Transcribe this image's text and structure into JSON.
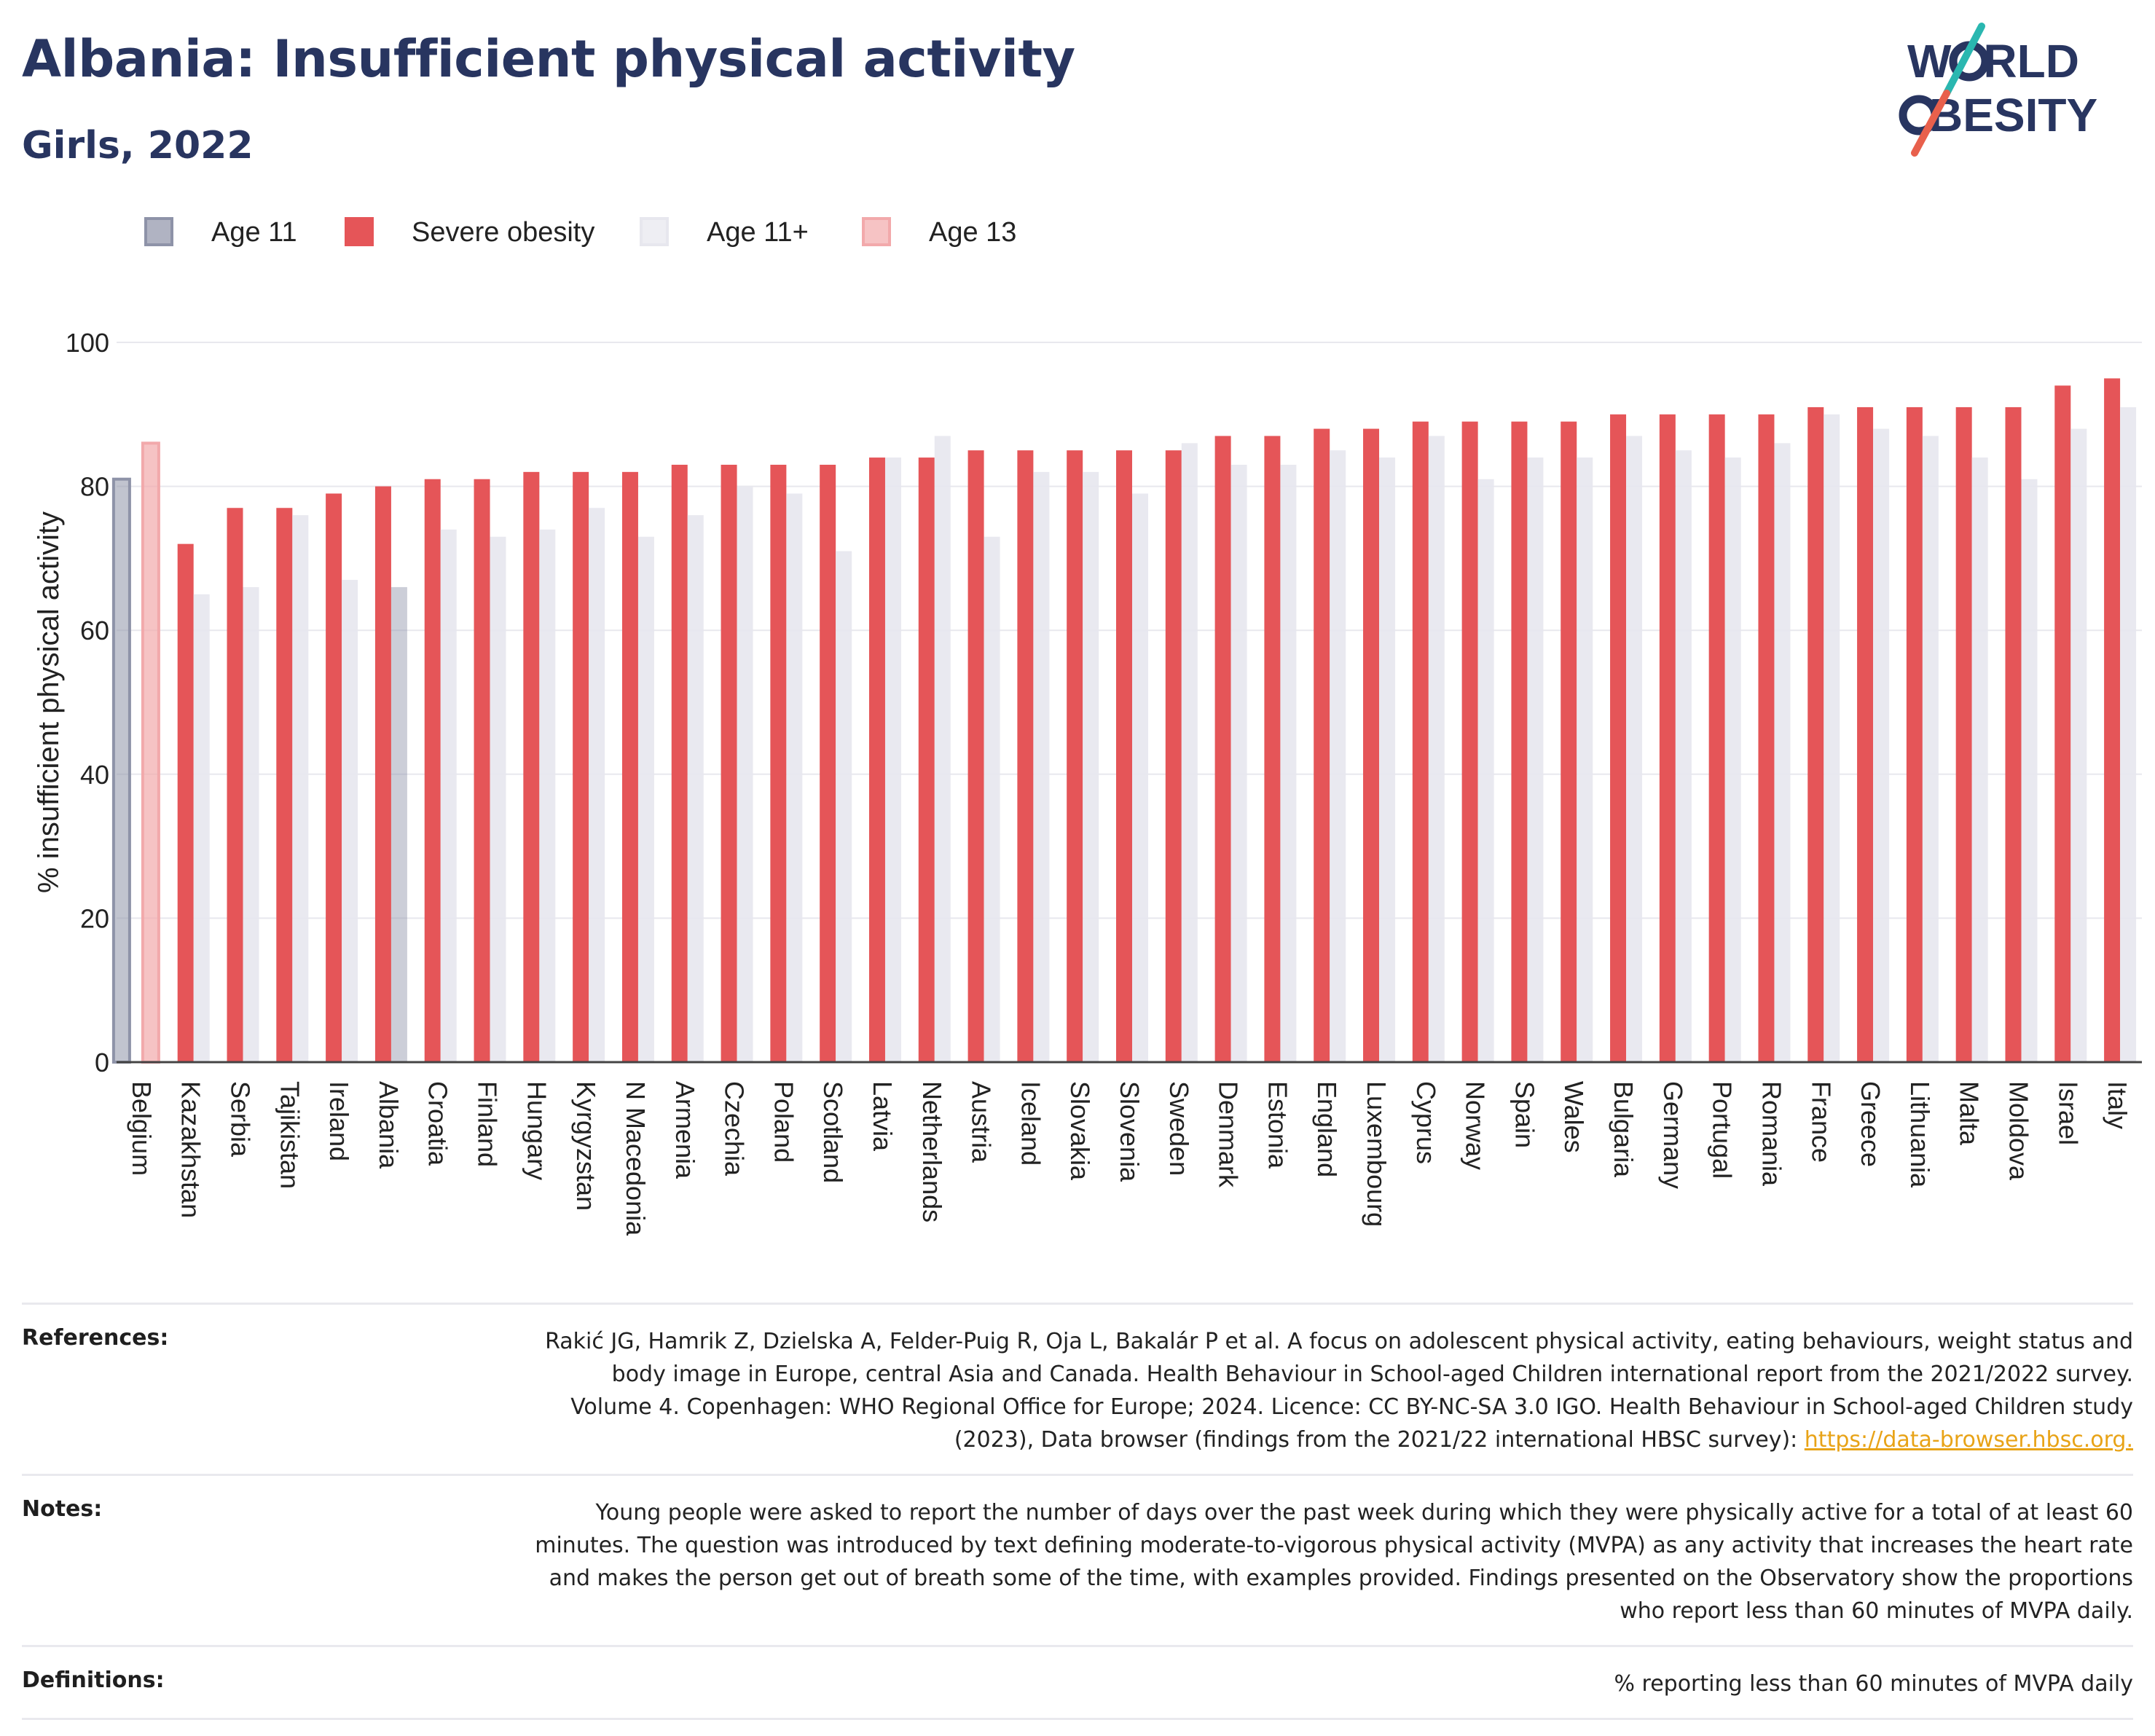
{
  "title": "Albania: Insufficient physical activity",
  "subtitle": "Girls, 2022",
  "logo": {
    "line1": "W",
    "line1b": "RLD",
    "line2": "BESITY"
  },
  "colors": {
    "age11": "#8e93a8",
    "severe": "#e55558",
    "age11plus": "#e7e7ee",
    "age13": "#f2a9ab",
    "axis": "#283560",
    "grid": "#e8e8ee",
    "logo_navy": "#283560",
    "logo_teal": "#2ab7b0",
    "logo_coral": "#e8604c"
  },
  "chart_data": {
    "type": "bar",
    "ylabel": "% insufficient physical activity",
    "ylim": [
      0,
      100
    ],
    "yticks": [
      0,
      20,
      40,
      60,
      80,
      100
    ],
    "legend": {
      "placement": "top-left",
      "items": [
        {
          "key": "age11",
          "label": "Age 11"
        },
        {
          "key": "severe",
          "label": "Severe obesity"
        },
        {
          "key": "age11plus",
          "label": "Age 11+"
        },
        {
          "key": "age13",
          "label": "Age 13"
        }
      ]
    },
    "categories": [
      "Belgium",
      "Kazakhstan",
      "Serbia",
      "Tajikistan",
      "Ireland",
      "Albania",
      "Croatia",
      "Finland",
      "Hungary",
      "Kyrgyzstan",
      "N Macedonia",
      "Armenia",
      "Czechia",
      "Poland",
      "Scotland",
      "Latvia",
      "Netherlands",
      "Austria",
      "Iceland",
      "Slovakia",
      "Slovenia",
      "Sweden",
      "Denmark",
      "Estonia",
      "England",
      "Luxembourg",
      "Cyprus",
      "Norway",
      "Spain",
      "Wales",
      "Bulgaria",
      "Germany",
      "Portugal",
      "Romania",
      "France",
      "Greece",
      "Lithuania",
      "Malta",
      "Moldova",
      "Israel",
      "Italy"
    ],
    "series": [
      {
        "name": "Age 11",
        "key": "age11",
        "values": [
          81,
          null,
          null,
          null,
          null,
          null,
          null,
          null,
          null,
          null,
          null,
          null,
          null,
          null,
          null,
          null,
          null,
          null,
          null,
          null,
          null,
          null,
          null,
          null,
          null,
          null,
          null,
          null,
          null,
          null,
          null,
          null,
          null,
          null,
          null,
          null,
          null,
          null,
          null,
          null,
          null
        ]
      },
      {
        "name": "Age 13",
        "key": "age13",
        "values": [
          86,
          null,
          null,
          null,
          null,
          null,
          null,
          null,
          null,
          null,
          null,
          null,
          null,
          null,
          null,
          null,
          null,
          null,
          null,
          null,
          null,
          null,
          null,
          null,
          null,
          null,
          null,
          null,
          null,
          null,
          null,
          null,
          null,
          null,
          null,
          null,
          null,
          null,
          null,
          null,
          null
        ]
      },
      {
        "name": "Severe obesity",
        "key": "severe",
        "values": [
          null,
          72,
          77,
          77,
          79,
          80,
          81,
          81,
          82,
          82,
          82,
          83,
          83,
          83,
          83,
          84,
          84,
          85,
          85,
          85,
          85,
          85,
          87,
          87,
          88,
          88,
          89,
          89,
          89,
          89,
          90,
          90,
          90,
          90,
          91,
          91,
          91,
          91,
          91,
          94,
          95
        ]
      },
      {
        "name": "Age 11+",
        "key": "age11plus",
        "values": [
          null,
          65,
          66,
          76,
          67,
          66,
          74,
          73,
          74,
          77,
          73,
          76,
          80,
          79,
          71,
          84,
          87,
          73,
          82,
          82,
          79,
          86,
          83,
          83,
          85,
          84,
          87,
          81,
          84,
          84,
          87,
          85,
          84,
          86,
          90,
          88,
          87,
          84,
          81,
          88,
          91
        ]
      }
    ],
    "highlight_category": "Albania"
  },
  "footer": {
    "references_label": "References:",
    "references_text": "Rakić JG, Hamrik Z, Dzielska A, Felder-Puig R, Oja L, Bakalár P et al. A focus on adolescent physical activity, eating behaviours, weight status and body image in Europe, central Asia and Canada. Health Behaviour in School-aged Children international report from the 2021/2022 survey. Volume 4. Copenhagen: WHO Regional Office for Europe; 2024. Licence: CC BY-NC-SA 3.0 IGO. Health Behaviour in School-aged Children study (2023), Data browser (findings from the 2021/22 international HBSC survey): ",
    "references_link": "https://data-browser.hbsc.org.",
    "notes_label": "Notes:",
    "notes_text": "Young people were asked to report the number of days over the past week during which they were physically active for a total of at least 60 minutes. The question was introduced by text defining moderate-to-vigorous physical activity (MVPA) as any activity that increases the heart rate and makes the person get out of breath some of the time, with examples provided. Findings presented on the Observatory show the proportions who report less than 60 minutes of MVPA daily.",
    "definitions_label": "Definitions:",
    "definitions_text": "% reporting less than 60 minutes of MVPA daily"
  }
}
